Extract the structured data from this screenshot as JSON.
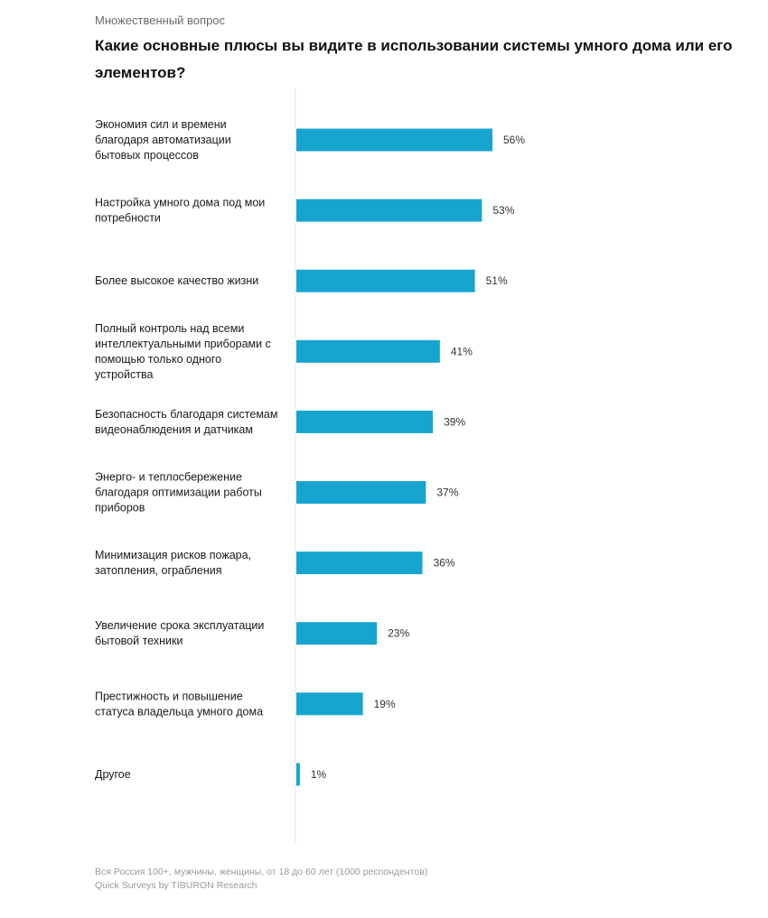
{
  "header": {
    "subtitle": "Множественный вопрос",
    "title": "Какие основные плюсы вы видите в использовании системы умного дома или его элементов?"
  },
  "chart_data": {
    "type": "bar",
    "orientation": "horizontal",
    "categories": [
      [
        "Экономия сил и времени",
        "благодаря автоматизации",
        "бытовых процессов"
      ],
      [
        "Настройка умного дома под мои",
        "потребности"
      ],
      [
        "Более высокое качество жизни"
      ],
      [
        "Полный контроль над всеми",
        "интеллектуальными приборами с",
        "помощью только одного",
        "устройства"
      ],
      [
        "Безопасность благодаря системам",
        "видеонаблюдения и датчикам"
      ],
      [
        "Энерго- и теплосбережение",
        "благодаря оптимизации работы",
        "приборов"
      ],
      [
        "Минимизация рисков пожара,",
        "затопления, ограбления"
      ],
      [
        "Увеличение срока эксплуатации",
        "бытовой техники"
      ],
      [
        "Престижность и повышение",
        "статуса владельца умного дома"
      ],
      [
        "Другое"
      ]
    ],
    "values": [
      56,
      53,
      51,
      41,
      39,
      37,
      36,
      23,
      19,
      1
    ],
    "value_labels": [
      "56%",
      "53%",
      "51%",
      "41%",
      "39%",
      "37%",
      "36%",
      "23%",
      "19%",
      "1%"
    ],
    "bar_color": "#17a5d0",
    "axis_color": "#e6e6e6",
    "xlim": [
      0,
      100
    ],
    "grid": false
  },
  "footer": {
    "line1": "Вся Россия 100+, мужчины, женщины, от 18 до 60 лет (1000 респондентов)",
    "line2": "Quick Surveys by TIBURON Research"
  }
}
